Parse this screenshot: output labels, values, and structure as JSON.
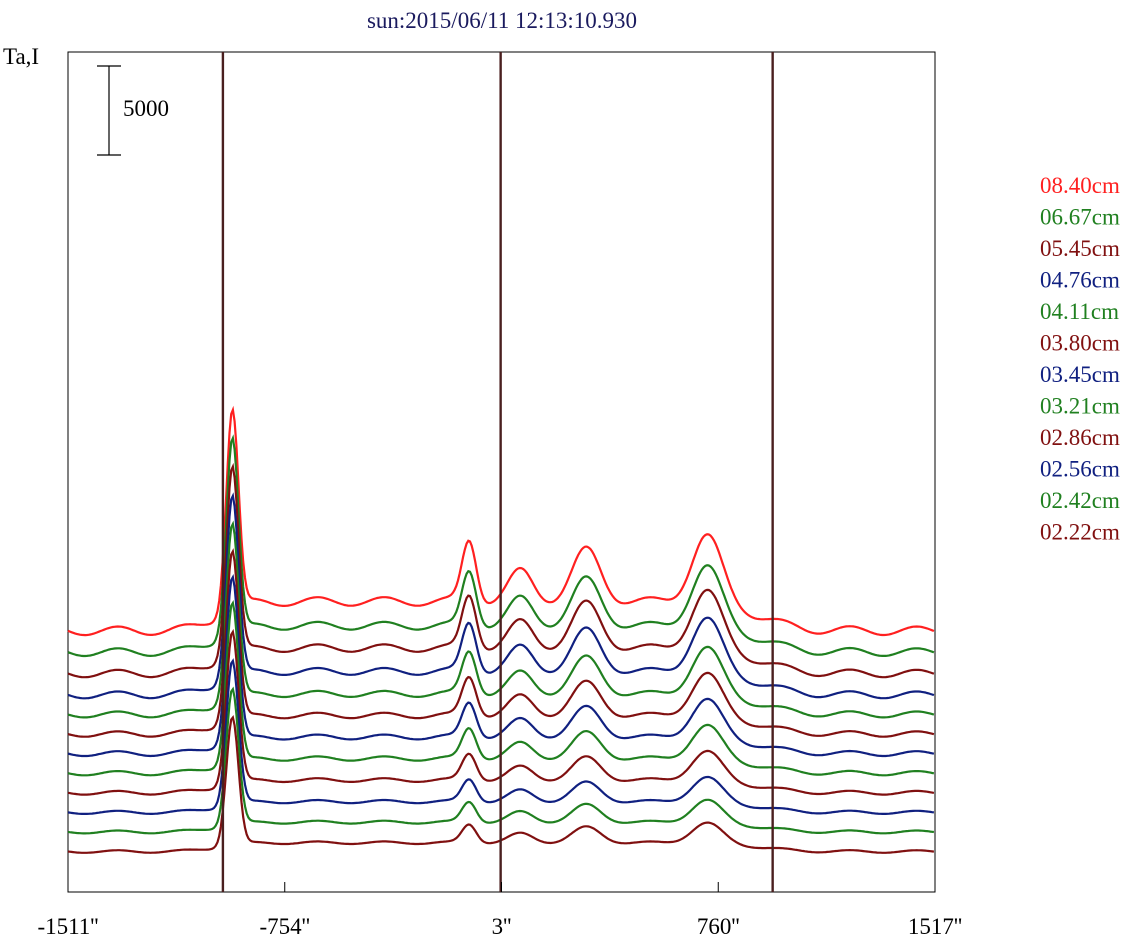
{
  "chart_data": {
    "type": "line",
    "title": "sun:2015/06/11 12:13:10.930",
    "ylabel": "Ta,I",
    "scale_bar_label": "5000",
    "scale_bar_value": 5000,
    "x_ticks": [
      {
        "label": "-1511''",
        "value": -1511
      },
      {
        "label": "-754''",
        "value": -754
      },
      {
        "label": "3''",
        "value": 3
      },
      {
        "label": "760''",
        "value": 760
      },
      {
        "label": "1517''",
        "value": 1517
      }
    ],
    "xlim": [
      -1511,
      1517
    ],
    "limb_markers": [
      -970,
      0,
      950
    ],
    "legend_position": "right",
    "series": [
      {
        "name": "08.40cm",
        "color": "#ff2020",
        "offset": 14000,
        "peak": 12500,
        "bump": 3000
      },
      {
        "name": "06.67cm",
        "color": "#208020",
        "offset": 12800,
        "peak": 12200,
        "bump": 2700
      },
      {
        "name": "05.45cm",
        "color": "#801010",
        "offset": 11600,
        "peak": 11800,
        "bump": 2600
      },
      {
        "name": "04.76cm",
        "color": "#102080",
        "offset": 10400,
        "peak": 11400,
        "bump": 2400
      },
      {
        "name": "04.11cm",
        "color": "#208020",
        "offset": 9300,
        "peak": 11000,
        "bump": 2100
      },
      {
        "name": "03.80cm",
        "color": "#801010",
        "offset": 8200,
        "peak": 10600,
        "bump": 1900
      },
      {
        "name": "03.45cm",
        "color": "#102080",
        "offset": 7100,
        "peak": 10300,
        "bump": 1700
      },
      {
        "name": "03.21cm",
        "color": "#208020",
        "offset": 6000,
        "peak": 10000,
        "bump": 1500
      },
      {
        "name": "02.86cm",
        "color": "#801010",
        "offset": 4900,
        "peak": 9500,
        "bump": 1300
      },
      {
        "name": "02.56cm",
        "color": "#102080",
        "offset": 3800,
        "peak": 9000,
        "bump": 1100
      },
      {
        "name": "02.42cm",
        "color": "#208020",
        "offset": 2700,
        "peak": 8500,
        "bump": 1000
      },
      {
        "name": "02.22cm",
        "color": "#801010",
        "offset": 1600,
        "peak": 8000,
        "bump": 900
      }
    ]
  }
}
